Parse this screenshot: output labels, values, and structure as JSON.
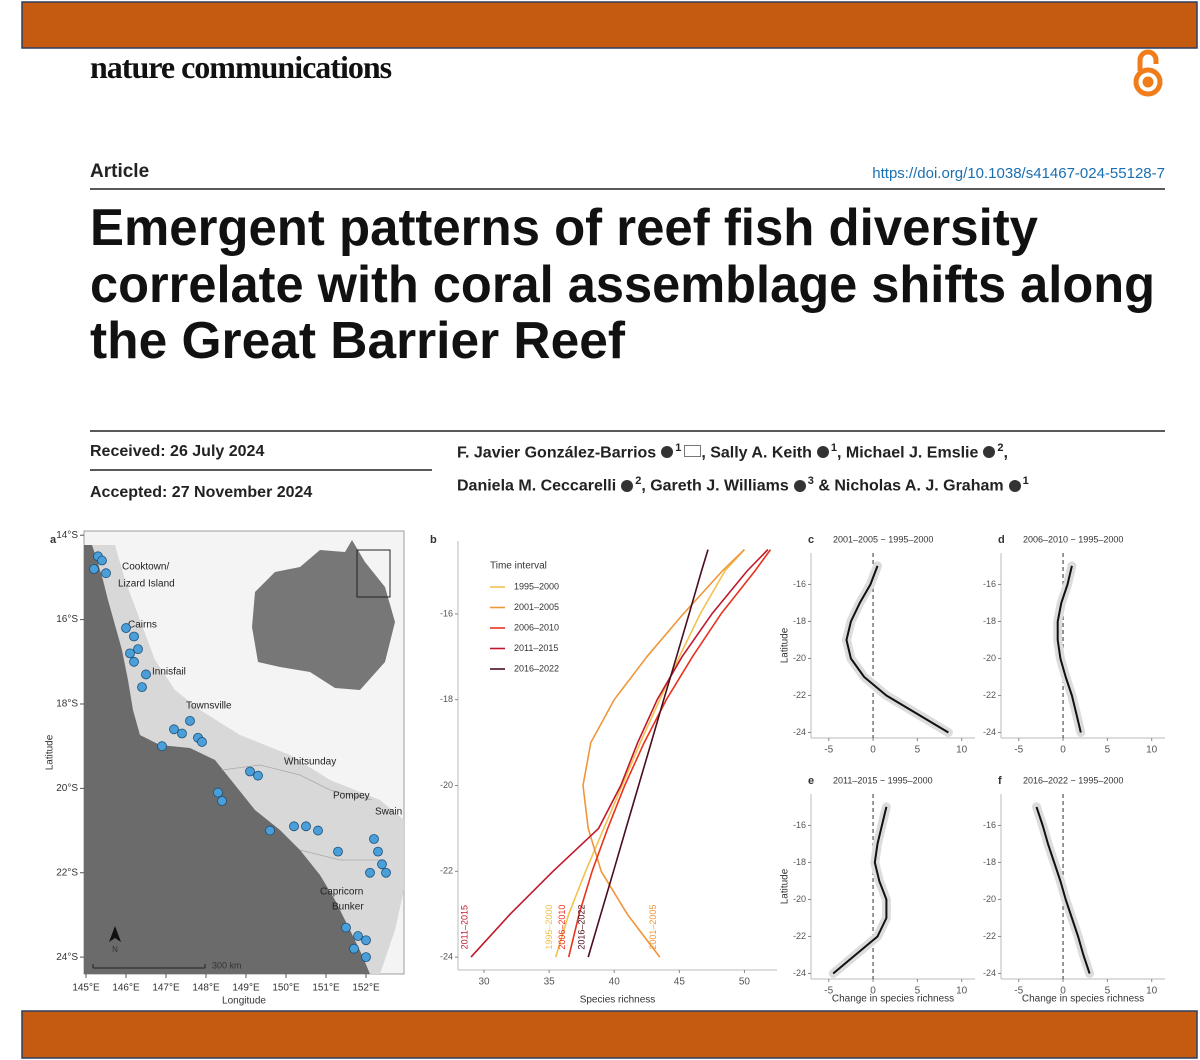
{
  "header": {
    "journal": "nature communications",
    "section": "Article",
    "doi": "https://doi.org/10.1038/s41467-024-55128-7",
    "title_lines": [
      "Emergent patterns of reef fish diversity",
      "correlate with coral assemblage shifts along",
      "the Great Barrier Reef"
    ],
    "received": "Received: 26 July 2024",
    "accepted": "Accepted: 27 November 2024",
    "authors": [
      [
        {
          "name": "F. Javier González-Barrios",
          "affiliations": [
            1
          ],
          "corresponding": true,
          "sep": ", "
        },
        {
          "name": "Sally A. Keith",
          "affiliations": [
            1
          ],
          "sep": ", "
        },
        {
          "name": "Michael J. Emslie",
          "affiliations": [
            2
          ],
          "sep": ","
        }
      ],
      [
        {
          "name": "Daniela M. Ceccarelli",
          "affiliations": [
            2
          ],
          "sep": ", "
        },
        {
          "name": "Gareth J. Williams",
          "affiliations": [
            3
          ],
          "sep": " & "
        },
        {
          "name": "Nicholas A. J. Graham",
          "affiliations": [
            1
          ]
        }
      ]
    ]
  },
  "chart_data": [
    {
      "type": "map",
      "panel": "a",
      "xlabel": "Longitude",
      "ylabel": "Latitude",
      "xlim": [
        144.95,
        152.95
      ],
      "ylim": [
        -24.4,
        -13.9
      ],
      "xticks": [
        {
          "value": 145,
          "label": "145°E"
        },
        {
          "value": 146,
          "label": "146°E"
        },
        {
          "value": 147,
          "label": "147°E"
        },
        {
          "value": 148,
          "label": "148°E"
        },
        {
          "value": 149,
          "label": "149°E"
        },
        {
          "value": 150,
          "label": "150°E"
        },
        {
          "value": 151,
          "label": "151°E"
        },
        {
          "value": 152,
          "label": "152°E"
        }
      ],
      "yticks": [
        {
          "value": -14,
          "label": "14°S"
        },
        {
          "value": -16,
          "label": "16°S"
        },
        {
          "value": -18,
          "label": "18°S"
        },
        {
          "value": -20,
          "label": "20°S"
        },
        {
          "value": -22,
          "label": "22°S"
        },
        {
          "value": -24,
          "label": "24°S"
        }
      ],
      "regions": [
        "Cooktown/",
        "Lizard Island",
        "Cairns",
        "Innisfail",
        "Townsville",
        "Whitsunday",
        "Pompey",
        "Swain",
        "Capricorn",
        "Bunker"
      ],
      "scale_label": "300 km",
      "north_label": "N",
      "site_color": "#4a9fd8",
      "sites": {
        "lon": [
          145.3,
          145.4,
          145.2,
          145.5,
          146.0,
          146.2,
          146.1,
          146.3,
          146.2,
          146.5,
          146.4,
          147.2,
          147.4,
          147.6,
          147.8,
          147.9,
          146.9,
          149.1,
          149.3,
          148.3,
          148.4,
          150.2,
          150.5,
          150.8,
          149.6,
          151.3,
          152.2,
          152.3,
          152.4,
          152.1,
          152.5,
          151.5,
          151.8,
          152.0,
          151.7,
          152.0
        ],
        "lat": [
          -14.5,
          -14.6,
          -14.8,
          -14.9,
          -16.2,
          -16.4,
          -16.8,
          -16.7,
          -17.0,
          -17.3,
          -17.6,
          -18.6,
          -18.7,
          -18.4,
          -18.8,
          -18.9,
          -19.0,
          -19.6,
          -19.7,
          -20.1,
          -20.3,
          -20.9,
          -20.9,
          -21.0,
          -21.0,
          -21.5,
          -21.2,
          -21.5,
          -21.8,
          -22.0,
          -22.0,
          -23.3,
          -23.5,
          -23.6,
          -23.8,
          -24.0
        ]
      }
    },
    {
      "type": "line",
      "panel": "b",
      "xlabel": "Species richness",
      "legend_title": "Time interval",
      "xlim": [
        28,
        52.5
      ],
      "ylim": [
        -24.3,
        -14.3
      ],
      "xticks": [
        30,
        35,
        40,
        45,
        50
      ],
      "yticks": [
        -16,
        -18,
        -20,
        -22,
        -24
      ],
      "y": [
        -24,
        -23,
        -22,
        -21,
        -20,
        -19,
        -18,
        -17,
        -16,
        -15,
        -14.5
      ],
      "series": [
        {
          "name": "1995–2000",
          "color": "#f2c14e",
          "values": [
            35.5,
            36.5,
            37.8,
            39.2,
            40.6,
            42,
            43.5,
            45,
            46.6,
            48.5,
            50
          ]
        },
        {
          "name": "2001–2005",
          "color": "#f0963a",
          "values": [
            43.5,
            41,
            39,
            38,
            37.6,
            38.2,
            40,
            42.5,
            45.3,
            48.3,
            50
          ]
        },
        {
          "name": "2006–2010",
          "color": "#e8321e",
          "values": [
            36.5,
            37.3,
            38.3,
            39.5,
            40.8,
            42.3,
            44,
            46,
            48.2,
            50.8,
            52
          ]
        },
        {
          "name": "2011–2015",
          "color": "#c0182a",
          "values": [
            29,
            32,
            35.3,
            38.8,
            40.5,
            41.8,
            43.3,
            45.2,
            47.5,
            50.2,
            51.8
          ]
        },
        {
          "name": "2016–2022",
          "color": "#4a0e1e",
          "values": [
            38,
            38.97,
            39.94,
            40.9,
            41.87,
            42.84,
            43.8,
            44.78,
            45.75,
            46.7,
            47.2
          ]
        }
      ]
    },
    {
      "type": "line",
      "panel": "c",
      "title": "2001–2005 − 1995–2000",
      "ylabel": "Latitude",
      "xlim": [
        -7,
        11.5
      ],
      "ylim": [
        -24.3,
        -14.3
      ],
      "xticks": [
        -5,
        0,
        5,
        10
      ],
      "yticks": [
        -16,
        -18,
        -20,
        -22,
        -24
      ],
      "vline": 0,
      "y": [
        -24,
        -23,
        -22,
        -21,
        -20,
        -19,
        -18,
        -17,
        -16,
        -15
      ],
      "series": [
        {
          "color": "#111111",
          "values": [
            8.5,
            5,
            1.5,
            -1,
            -2.5,
            -3,
            -2.5,
            -1.5,
            -0.3,
            0.5
          ]
        }
      ]
    },
    {
      "type": "line",
      "panel": "d",
      "title": "2006–2010 − 1995–2000",
      "xlim": [
        -7,
        11.5
      ],
      "ylim": [
        -24.3,
        -14.3
      ],
      "xticks": [
        -5,
        0,
        5,
        10
      ],
      "yticks": [
        -16,
        -18,
        -20,
        -22,
        -24
      ],
      "vline": 0,
      "y": [
        -24,
        -23,
        -22,
        -21,
        -20,
        -19,
        -18,
        -17,
        -16,
        -15
      ],
      "series": [
        {
          "color": "#111111",
          "values": [
            2,
            1.5,
            1,
            0.3,
            -0.3,
            -0.6,
            -0.6,
            -0.2,
            0.5,
            1
          ]
        }
      ]
    },
    {
      "type": "line",
      "panel": "e",
      "title": "2011–2015 − 1995–2000",
      "xlabel": "Change in species richness",
      "ylabel": "Latitude",
      "xlim": [
        -7,
        11.5
      ],
      "ylim": [
        -24.3,
        -14.3
      ],
      "xticks": [
        -5,
        0,
        5,
        10
      ],
      "yticks": [
        -16,
        -18,
        -20,
        -22,
        -24
      ],
      "vline": 0,
      "y": [
        -24,
        -23,
        -22,
        -21,
        -20,
        -19,
        -18,
        -17,
        -16,
        -15
      ],
      "series": [
        {
          "color": "#111111",
          "values": [
            -4.5,
            -2,
            0.5,
            1.5,
            1.5,
            0.7,
            0.2,
            0.5,
            1,
            1.5
          ]
        }
      ]
    },
    {
      "type": "line",
      "panel": "f",
      "title": "2016–2022 − 1995–2000",
      "xlabel": "Change in species richness",
      "xlim": [
        -7,
        11.5
      ],
      "ylim": [
        -24.3,
        -14.3
      ],
      "xticks": [
        -5,
        0,
        5,
        10
      ],
      "yticks": [
        -16,
        -18,
        -20,
        -22,
        -24
      ],
      "vline": 0,
      "y": [
        -24,
        -23,
        -22,
        -21,
        -20,
        -19,
        -18,
        -17,
        -16,
        -15
      ],
      "series": [
        {
          "color": "#111111",
          "values": [
            3,
            2.3,
            1.7,
            1,
            0.3,
            -0.3,
            -1,
            -1.7,
            -2.3,
            -3
          ]
        }
      ]
    }
  ]
}
